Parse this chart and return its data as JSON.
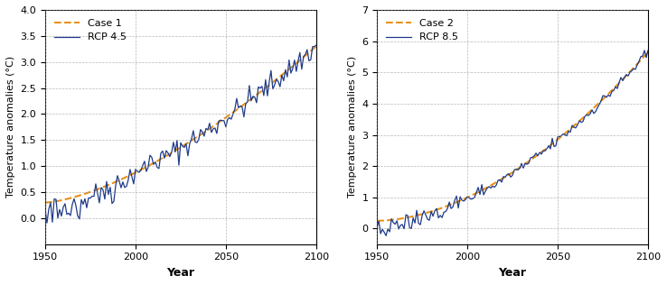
{
  "xlim": [
    1950,
    2100
  ],
  "ylim1": [
    -0.5,
    4.0
  ],
  "ylim2": [
    -0.5,
    7.0
  ],
  "yticks1": [
    0,
    0.5,
    1.0,
    1.5,
    2.0,
    2.5,
    3.0,
    3.5,
    4.0
  ],
  "yticks2": [
    0,
    1,
    2,
    3,
    4,
    5,
    6,
    7
  ],
  "xticks": [
    1950,
    2000,
    2050,
    2100
  ],
  "xlabel": "Year",
  "ylabel": "Temperature anomalies (°C)",
  "legend1": [
    "Case 1",
    "RCP 4.5"
  ],
  "legend2": [
    "Case 2",
    "RCP 8.5"
  ],
  "case_color": "#E8921A",
  "rcp_color": "#1E3A8A",
  "bg_color": "#FFFFFF",
  "grid_color": "#999999",
  "seed": 42
}
